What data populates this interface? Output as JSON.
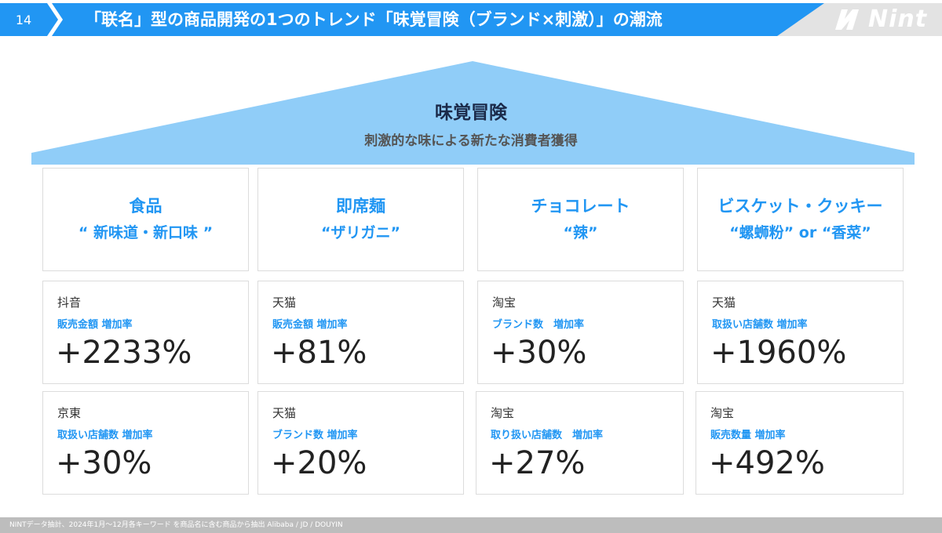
{
  "header": {
    "page_number": "14",
    "title": "「联名」型の商品開発の1つのトレンド「味覚冒険（ブランド×刺激）」の潮流",
    "logo_text": "Nint",
    "bar_color": "#2196f3"
  },
  "roof": {
    "title": "味覚冒険",
    "subtitle": "刺激的な味による新たな消費者獲得",
    "color": "#90cdf8"
  },
  "categories": [
    {
      "name": "食品",
      "keyword": "“ 新味道・新口味 ”"
    },
    {
      "name": "即席麺",
      "keyword": "“ザリガニ”"
    },
    {
      "name": "チョコレート",
      "keyword": "“辣”"
    },
    {
      "name": "ビスケット・クッキー",
      "keyword": "“螺蛳粉” or “香菜”"
    }
  ],
  "stats_row1": [
    {
      "platform": "抖音",
      "metric": "販売金額 増加率",
      "value": "+2233%"
    },
    {
      "platform": "天猫",
      "metric": "販売金額 増加率",
      "value": "+81%"
    },
    {
      "platform": "淘宝",
      "metric": "ブランド数　増加率",
      "value": "+30%"
    },
    {
      "platform": "天猫",
      "metric": "取扱い店舗数 増加率",
      "value": "+1960%"
    }
  ],
  "stats_row2": [
    {
      "platform": "京東",
      "metric": "取扱い店舗数 増加率",
      "value": "+30%"
    },
    {
      "platform": "天猫",
      "metric": "ブランド数 増加率",
      "value": "+20%"
    },
    {
      "platform": "淘宝",
      "metric": "取り扱い店舗数　増加率",
      "value": "+27%"
    },
    {
      "platform": "淘宝",
      "metric": "販売数量 増加率",
      "value": "+492%"
    }
  ],
  "footer": {
    "source": "NINTデータ抽計、2024年1月〜12月各キーワード を商品名に含む商品から抽出 Alibaba / JD / DOUYIN"
  }
}
